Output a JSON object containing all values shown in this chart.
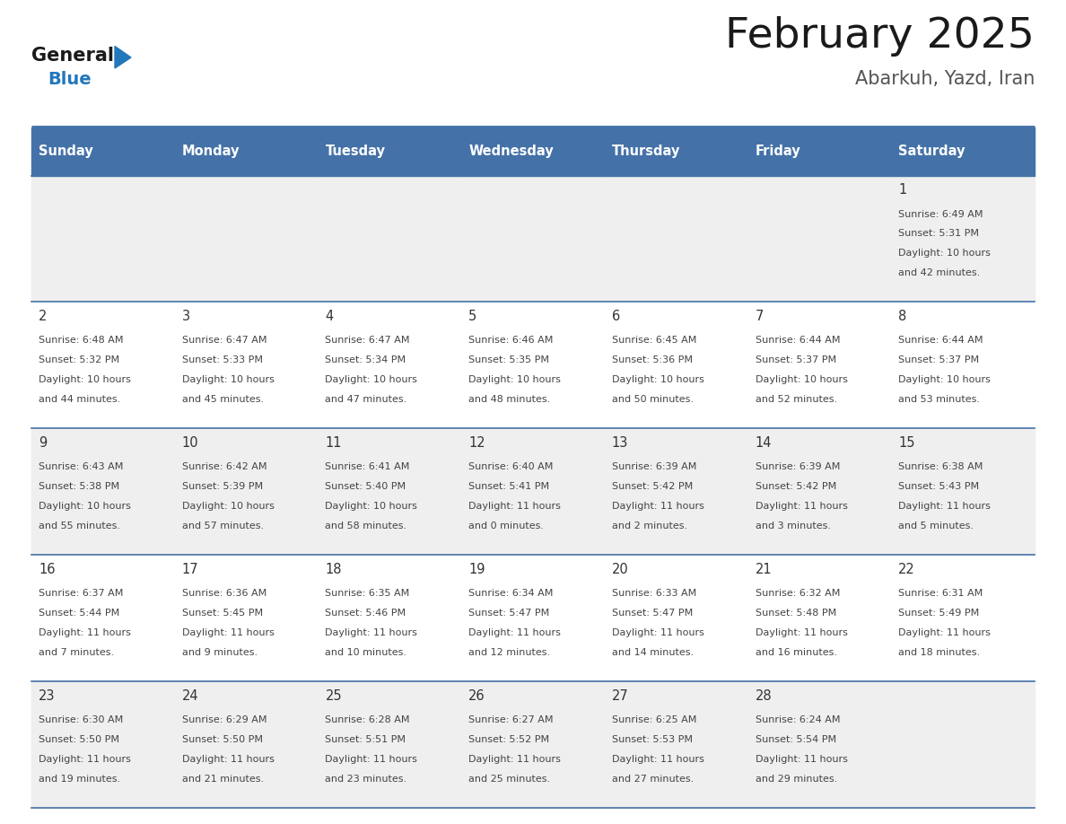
{
  "title": "February 2025",
  "subtitle": "Abarkuh, Yazd, Iran",
  "days_of_week": [
    "Sunday",
    "Monday",
    "Tuesday",
    "Wednesday",
    "Thursday",
    "Friday",
    "Saturday"
  ],
  "header_bg": "#4472a8",
  "header_text_color": "#ffffff",
  "row_bg_light": "#efefef",
  "row_bg_white": "#ffffff",
  "cell_border_color": "#4472a8",
  "day_number_color": "#333333",
  "info_text_color": "#444444",
  "title_color": "#1a1a1a",
  "subtitle_color": "#555555",
  "logo_black": "#1a1a1a",
  "logo_blue": "#2277bb",
  "calendar_data": [
    {
      "day": 1,
      "col": 6,
      "row": 0,
      "sunrise": "6:49 AM",
      "sunset": "5:31 PM",
      "daylight_h": "10 hours",
      "daylight_m": "42 minutes."
    },
    {
      "day": 2,
      "col": 0,
      "row": 1,
      "sunrise": "6:48 AM",
      "sunset": "5:32 PM",
      "daylight_h": "10 hours",
      "daylight_m": "44 minutes."
    },
    {
      "day": 3,
      "col": 1,
      "row": 1,
      "sunrise": "6:47 AM",
      "sunset": "5:33 PM",
      "daylight_h": "10 hours",
      "daylight_m": "45 minutes."
    },
    {
      "day": 4,
      "col": 2,
      "row": 1,
      "sunrise": "6:47 AM",
      "sunset": "5:34 PM",
      "daylight_h": "10 hours",
      "daylight_m": "47 minutes."
    },
    {
      "day": 5,
      "col": 3,
      "row": 1,
      "sunrise": "6:46 AM",
      "sunset": "5:35 PM",
      "daylight_h": "10 hours",
      "daylight_m": "48 minutes."
    },
    {
      "day": 6,
      "col": 4,
      "row": 1,
      "sunrise": "6:45 AM",
      "sunset": "5:36 PM",
      "daylight_h": "10 hours",
      "daylight_m": "50 minutes."
    },
    {
      "day": 7,
      "col": 5,
      "row": 1,
      "sunrise": "6:44 AM",
      "sunset": "5:37 PM",
      "daylight_h": "10 hours",
      "daylight_m": "52 minutes."
    },
    {
      "day": 8,
      "col": 6,
      "row": 1,
      "sunrise": "6:44 AM",
      "sunset": "5:37 PM",
      "daylight_h": "10 hours",
      "daylight_m": "53 minutes."
    },
    {
      "day": 9,
      "col": 0,
      "row": 2,
      "sunrise": "6:43 AM",
      "sunset": "5:38 PM",
      "daylight_h": "10 hours",
      "daylight_m": "55 minutes."
    },
    {
      "day": 10,
      "col": 1,
      "row": 2,
      "sunrise": "6:42 AM",
      "sunset": "5:39 PM",
      "daylight_h": "10 hours",
      "daylight_m": "57 minutes."
    },
    {
      "day": 11,
      "col": 2,
      "row": 2,
      "sunrise": "6:41 AM",
      "sunset": "5:40 PM",
      "daylight_h": "10 hours",
      "daylight_m": "58 minutes."
    },
    {
      "day": 12,
      "col": 3,
      "row": 2,
      "sunrise": "6:40 AM",
      "sunset": "5:41 PM",
      "daylight_h": "11 hours",
      "daylight_m": "0 minutes."
    },
    {
      "day": 13,
      "col": 4,
      "row": 2,
      "sunrise": "6:39 AM",
      "sunset": "5:42 PM",
      "daylight_h": "11 hours",
      "daylight_m": "2 minutes."
    },
    {
      "day": 14,
      "col": 5,
      "row": 2,
      "sunrise": "6:39 AM",
      "sunset": "5:42 PM",
      "daylight_h": "11 hours",
      "daylight_m": "3 minutes."
    },
    {
      "day": 15,
      "col": 6,
      "row": 2,
      "sunrise": "6:38 AM",
      "sunset": "5:43 PM",
      "daylight_h": "11 hours",
      "daylight_m": "5 minutes."
    },
    {
      "day": 16,
      "col": 0,
      "row": 3,
      "sunrise": "6:37 AM",
      "sunset": "5:44 PM",
      "daylight_h": "11 hours",
      "daylight_m": "7 minutes."
    },
    {
      "day": 17,
      "col": 1,
      "row": 3,
      "sunrise": "6:36 AM",
      "sunset": "5:45 PM",
      "daylight_h": "11 hours",
      "daylight_m": "9 minutes."
    },
    {
      "day": 18,
      "col": 2,
      "row": 3,
      "sunrise": "6:35 AM",
      "sunset": "5:46 PM",
      "daylight_h": "11 hours",
      "daylight_m": "10 minutes."
    },
    {
      "day": 19,
      "col": 3,
      "row": 3,
      "sunrise": "6:34 AM",
      "sunset": "5:47 PM",
      "daylight_h": "11 hours",
      "daylight_m": "12 minutes."
    },
    {
      "day": 20,
      "col": 4,
      "row": 3,
      "sunrise": "6:33 AM",
      "sunset": "5:47 PM",
      "daylight_h": "11 hours",
      "daylight_m": "14 minutes."
    },
    {
      "day": 21,
      "col": 5,
      "row": 3,
      "sunrise": "6:32 AM",
      "sunset": "5:48 PM",
      "daylight_h": "11 hours",
      "daylight_m": "16 minutes."
    },
    {
      "day": 22,
      "col": 6,
      "row": 3,
      "sunrise": "6:31 AM",
      "sunset": "5:49 PM",
      "daylight_h": "11 hours",
      "daylight_m": "18 minutes."
    },
    {
      "day": 23,
      "col": 0,
      "row": 4,
      "sunrise": "6:30 AM",
      "sunset": "5:50 PM",
      "daylight_h": "11 hours",
      "daylight_m": "19 minutes."
    },
    {
      "day": 24,
      "col": 1,
      "row": 4,
      "sunrise": "6:29 AM",
      "sunset": "5:50 PM",
      "daylight_h": "11 hours",
      "daylight_m": "21 minutes."
    },
    {
      "day": 25,
      "col": 2,
      "row": 4,
      "sunrise": "6:28 AM",
      "sunset": "5:51 PM",
      "daylight_h": "11 hours",
      "daylight_m": "23 minutes."
    },
    {
      "day": 26,
      "col": 3,
      "row": 4,
      "sunrise": "6:27 AM",
      "sunset": "5:52 PM",
      "daylight_h": "11 hours",
      "daylight_m": "25 minutes."
    },
    {
      "day": 27,
      "col": 4,
      "row": 4,
      "sunrise": "6:25 AM",
      "sunset": "5:53 PM",
      "daylight_h": "11 hours",
      "daylight_m": "27 minutes."
    },
    {
      "day": 28,
      "col": 5,
      "row": 4,
      "sunrise": "6:24 AM",
      "sunset": "5:54 PM",
      "daylight_h": "11 hours",
      "daylight_m": "29 minutes."
    }
  ],
  "num_rows": 5,
  "num_cols": 7,
  "fig_width": 11.88,
  "fig_height": 9.18
}
